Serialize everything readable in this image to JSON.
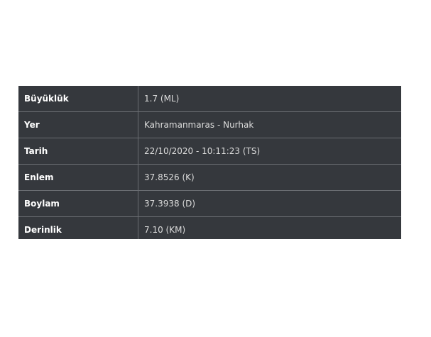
{
  "rows": [
    {
      "label": "Büyüklük",
      "value": "1.7 (ML)"
    },
    {
      "label": "Yer",
      "value": "Kahramanmaras - Nurhak"
    },
    {
      "label": "Tarih",
      "value": "22/10/2020 - 10:11:23 (TS)"
    },
    {
      "label": "Enlem",
      "value": "37.8526 (K)"
    },
    {
      "label": "Boylam",
      "value": "37.3938 (D)"
    },
    {
      "label": "Derinlik",
      "value": "7.10 (KM)"
    }
  ]
}
